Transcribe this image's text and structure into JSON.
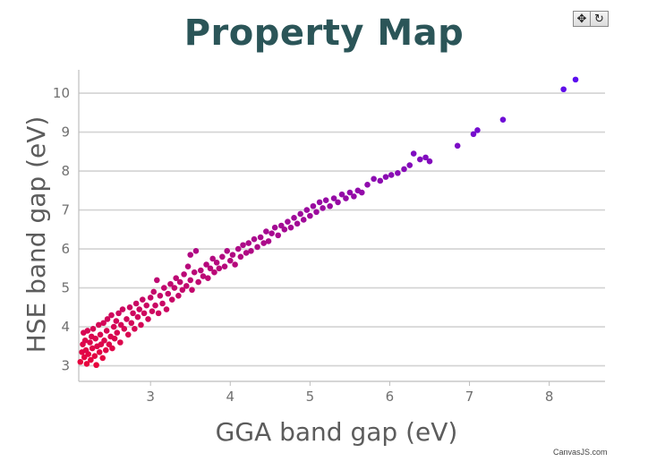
{
  "toolbar": {
    "pan_icon": "pan-move-icon",
    "reset_icon": "reset-rotate-icon",
    "pan_glyph": "✥",
    "reset_glyph": "↻"
  },
  "credit": "CanvasJS.com",
  "chart_data": {
    "type": "scatter",
    "title": "Property Map",
    "xlabel": "GGA band gap (eV)",
    "ylabel": "HSE band gap (eV)",
    "xlim": [
      2.1,
      8.7
    ],
    "ylim": [
      2.6,
      10.6
    ],
    "xticks": [
      3,
      4,
      5,
      6,
      7,
      8
    ],
    "yticks": [
      3,
      4,
      5,
      6,
      7,
      8,
      9,
      10
    ],
    "grid": "horizontal",
    "legend": "none",
    "colors": {
      "low": "#e8053d",
      "high": "#5a0ef0",
      "grid": "#d3d3d3",
      "axis": "#bdbdbd"
    },
    "series": [
      {
        "points": [
          [
            2.12,
            3.1
          ],
          [
            2.14,
            3.35
          ],
          [
            2.15,
            3.55
          ],
          [
            2.16,
            3.85
          ],
          [
            2.17,
            3.22
          ],
          [
            2.18,
            3.65
          ],
          [
            2.19,
            3.4
          ],
          [
            2.2,
            3.05
          ],
          [
            2.21,
            3.9
          ],
          [
            2.22,
            3.3
          ],
          [
            2.24,
            3.6
          ],
          [
            2.25,
            3.15
          ],
          [
            2.26,
            3.75
          ],
          [
            2.27,
            3.45
          ],
          [
            2.28,
            3.95
          ],
          [
            2.3,
            3.25
          ],
          [
            2.31,
            3.7
          ],
          [
            2.32,
            3.02
          ],
          [
            2.33,
            3.5
          ],
          [
            2.35,
            4.05
          ],
          [
            2.36,
            3.35
          ],
          [
            2.37,
            3.8
          ],
          [
            2.38,
            3.55
          ],
          [
            2.4,
            3.2
          ],
          [
            2.41,
            4.1
          ],
          [
            2.42,
            3.65
          ],
          [
            2.44,
            3.4
          ],
          [
            2.45,
            3.9
          ],
          [
            2.46,
            4.2
          ],
          [
            2.48,
            3.55
          ],
          [
            2.5,
            3.75
          ],
          [
            2.51,
            4.3
          ],
          [
            2.52,
            3.45
          ],
          [
            2.54,
            4.0
          ],
          [
            2.55,
            3.7
          ],
          [
            2.57,
            4.15
          ],
          [
            2.58,
            3.85
          ],
          [
            2.6,
            4.35
          ],
          [
            2.62,
            3.6
          ],
          [
            2.63,
            4.05
          ],
          [
            2.65,
            4.45
          ],
          [
            2.67,
            3.95
          ],
          [
            2.7,
            4.2
          ],
          [
            2.72,
            3.8
          ],
          [
            2.74,
            4.5
          ],
          [
            2.76,
            4.1
          ],
          [
            2.78,
            4.35
          ],
          [
            2.8,
            3.95
          ],
          [
            2.82,
            4.6
          ],
          [
            2.84,
            4.25
          ],
          [
            2.86,
            4.45
          ],
          [
            2.88,
            4.05
          ],
          [
            2.9,
            4.7
          ],
          [
            2.92,
            4.35
          ],
          [
            2.95,
            4.55
          ],
          [
            2.97,
            4.2
          ],
          [
            3.0,
            4.75
          ],
          [
            3.02,
            4.4
          ],
          [
            3.04,
            4.9
          ],
          [
            3.06,
            4.55
          ],
          [
            3.08,
            5.2
          ],
          [
            3.1,
            4.35
          ],
          [
            3.12,
            4.8
          ],
          [
            3.15,
            4.6
          ],
          [
            3.17,
            5.0
          ],
          [
            3.2,
            4.45
          ],
          [
            3.22,
            4.85
          ],
          [
            3.25,
            5.1
          ],
          [
            3.27,
            4.7
          ],
          [
            3.3,
            5.0
          ],
          [
            3.32,
            5.25
          ],
          [
            3.35,
            4.8
          ],
          [
            3.37,
            5.15
          ],
          [
            3.4,
            4.95
          ],
          [
            3.42,
            5.35
          ],
          [
            3.45,
            5.05
          ],
          [
            3.47,
            5.55
          ],
          [
            3.5,
            5.2
          ],
          [
            3.52,
            4.95
          ],
          [
            3.55,
            5.4
          ],
          [
            3.5,
            5.85
          ],
          [
            3.57,
            5.95
          ],
          [
            3.6,
            5.15
          ],
          [
            3.63,
            5.45
          ],
          [
            3.66,
            5.3
          ],
          [
            3.7,
            5.6
          ],
          [
            3.72,
            5.25
          ],
          [
            3.75,
            5.5
          ],
          [
            3.78,
            5.75
          ],
          [
            3.8,
            5.4
          ],
          [
            3.83,
            5.65
          ],
          [
            3.86,
            5.5
          ],
          [
            3.9,
            5.8
          ],
          [
            3.93,
            5.55
          ],
          [
            3.96,
            5.95
          ],
          [
            4.0,
            5.7
          ],
          [
            4.03,
            5.85
          ],
          [
            4.06,
            5.6
          ],
          [
            4.1,
            6.0
          ],
          [
            4.13,
            5.8
          ],
          [
            4.16,
            6.1
          ],
          [
            4.2,
            5.9
          ],
          [
            4.23,
            6.15
          ],
          [
            4.26,
            5.95
          ],
          [
            4.3,
            6.25
          ],
          [
            4.34,
            6.05
          ],
          [
            4.38,
            6.3
          ],
          [
            4.42,
            6.15
          ],
          [
            4.45,
            6.45
          ],
          [
            4.48,
            6.2
          ],
          [
            4.52,
            6.4
          ],
          [
            4.56,
            6.55
          ],
          [
            4.6,
            6.35
          ],
          [
            4.64,
            6.6
          ],
          [
            4.68,
            6.5
          ],
          [
            4.72,
            6.7
          ],
          [
            4.76,
            6.55
          ],
          [
            4.8,
            6.8
          ],
          [
            4.84,
            6.65
          ],
          [
            4.88,
            6.9
          ],
          [
            4.92,
            6.75
          ],
          [
            4.96,
            7.0
          ],
          [
            5.0,
            6.85
          ],
          [
            5.04,
            7.1
          ],
          [
            5.08,
            6.95
          ],
          [
            5.12,
            7.2
          ],
          [
            5.16,
            7.05
          ],
          [
            5.2,
            7.25
          ],
          [
            5.25,
            7.1
          ],
          [
            5.3,
            7.3
          ],
          [
            5.35,
            7.2
          ],
          [
            5.4,
            7.4
          ],
          [
            5.45,
            7.3
          ],
          [
            5.5,
            7.45
          ],
          [
            5.55,
            7.35
          ],
          [
            5.6,
            7.5
          ],
          [
            5.65,
            7.45
          ],
          [
            5.72,
            7.65
          ],
          [
            5.8,
            7.8
          ],
          [
            5.88,
            7.75
          ],
          [
            5.95,
            7.85
          ],
          [
            6.02,
            7.9
          ],
          [
            6.1,
            7.95
          ],
          [
            6.18,
            8.05
          ],
          [
            6.25,
            8.15
          ],
          [
            6.3,
            8.45
          ],
          [
            6.38,
            8.3
          ],
          [
            6.45,
            8.35
          ],
          [
            6.5,
            8.25
          ],
          [
            6.85,
            8.65
          ],
          [
            7.05,
            8.95
          ],
          [
            7.1,
            9.05
          ],
          [
            7.42,
            9.32
          ],
          [
            8.18,
            10.1
          ],
          [
            8.33,
            10.35
          ]
        ]
      }
    ]
  }
}
